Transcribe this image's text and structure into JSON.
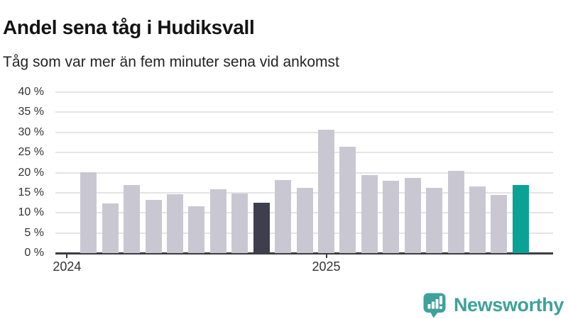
{
  "header": {
    "title": "Andel sena tåg i Hudiksvall",
    "subtitle": "Tåg som var mer än fem minuter sena vid ankomst"
  },
  "chart_data": {
    "type": "bar",
    "title": "Andel sena tåg i Hudiksvall",
    "subtitle": "Tåg som var mer än fem minuter sena vid ankomst",
    "unit": "%",
    "categories": [
      "2024-02",
      "2024-03",
      "2024-04",
      "2024-05",
      "2024-06",
      "2024-07",
      "2024-08",
      "2024-09",
      "2024-10",
      "2024-11",
      "2024-12",
      "2025-01",
      "2025-02",
      "2025-03",
      "2025-04",
      "2025-05",
      "2025-06",
      "2025-07",
      "2025-08",
      "2025-09",
      "2025-10"
    ],
    "values": [
      20.1,
      12.4,
      16.9,
      13.2,
      14.6,
      11.6,
      15.8,
      14.8,
      12.5,
      18.2,
      16.2,
      30.7,
      26.4,
      19.3,
      18.0,
      18.6,
      16.2,
      20.5,
      16.6,
      14.5,
      16.9
    ],
    "ylim": [
      0,
      40
    ],
    "y_tick_labels": [
      "40 %",
      "35 %",
      "30 %",
      "25 %",
      "20 %",
      "15 %",
      "10 %",
      "5 %",
      "0 %"
    ],
    "x_ticks": [
      {
        "label": "2024",
        "month_index": -1
      },
      {
        "label": "2025",
        "month_index": 11
      }
    ],
    "grid": true,
    "legend": "none",
    "colors": {
      "default": "#c9c8d2",
      "highlight_dark": "#3f3e4c",
      "highlight_teal": "#0ba296",
      "axis": "#3d3c42",
      "gridline": "#e4e4e8"
    },
    "highlights": {
      "dark_index": 8,
      "teal_index": 20
    }
  },
  "footer": {
    "brand": "Newsworthy",
    "brand_color": "#3ea29a"
  }
}
